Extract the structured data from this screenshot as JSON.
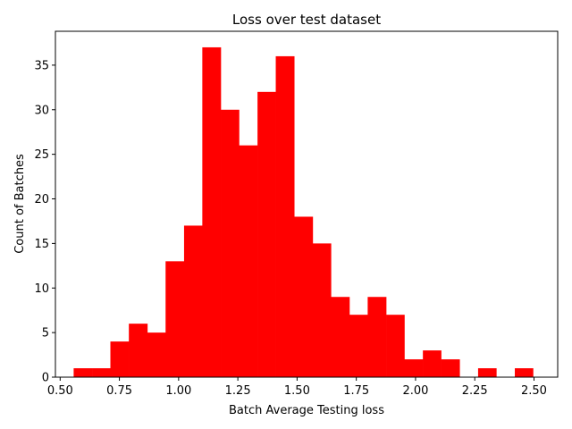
{
  "chart_data": {
    "type": "bar",
    "title": "Loss over test dataset",
    "xlabel": "Batch Average Testing loss",
    "ylabel": "Count of Batches",
    "xlim": [
      0.48,
      2.6
    ],
    "ylim": [
      0,
      38.8
    ],
    "bar_color": "#ff0000",
    "bin_edges": [
      0.557,
      0.635,
      0.712,
      0.79,
      0.868,
      0.945,
      1.023,
      1.1,
      1.178,
      1.255,
      1.333,
      1.41,
      1.488,
      1.566,
      1.643,
      1.721,
      1.798,
      1.876,
      1.953,
      2.031,
      2.108,
      2.186,
      2.264,
      2.341,
      2.419,
      2.496
    ],
    "counts": [
      1,
      1,
      4,
      6,
      5,
      13,
      17,
      37,
      30,
      26,
      32,
      36,
      18,
      15,
      9,
      7,
      9,
      7,
      2,
      3,
      2,
      0,
      1,
      0,
      1
    ],
    "x_ticks": [
      {
        "value": 0.5,
        "label": "0.50"
      },
      {
        "value": 0.75,
        "label": "0.75"
      },
      {
        "value": 1.0,
        "label": "1.00"
      },
      {
        "value": 1.25,
        "label": "1.25"
      },
      {
        "value": 1.5,
        "label": "1.50"
      },
      {
        "value": 1.75,
        "label": "1.75"
      },
      {
        "value": 2.0,
        "label": "2.00"
      },
      {
        "value": 2.25,
        "label": "2.25"
      },
      {
        "value": 2.5,
        "label": "2.50"
      }
    ],
    "y_ticks": [
      {
        "value": 0,
        "label": "0"
      },
      {
        "value": 5,
        "label": "5"
      },
      {
        "value": 10,
        "label": "10"
      },
      {
        "value": 15,
        "label": "15"
      },
      {
        "value": 20,
        "label": "20"
      },
      {
        "value": 25,
        "label": "25"
      },
      {
        "value": 30,
        "label": "30"
      },
      {
        "value": 35,
        "label": "35"
      }
    ],
    "grid": false,
    "legend": "none"
  }
}
